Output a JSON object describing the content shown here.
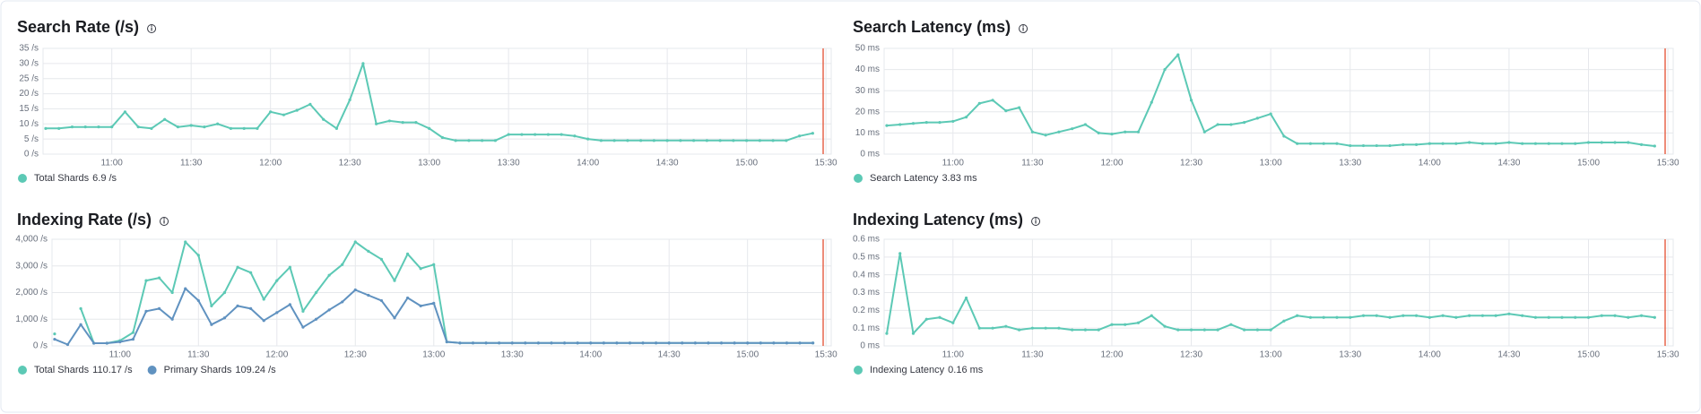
{
  "chart_data": [
    {
      "type": "line",
      "title": "Search Rate (/s)",
      "x": [
        "10:35",
        "10:40",
        "10:45",
        "10:50",
        "10:55",
        "11:00",
        "11:05",
        "11:10",
        "11:15",
        "11:20",
        "11:25",
        "11:30",
        "11:35",
        "11:40",
        "11:45",
        "11:50",
        "11:55",
        "12:00",
        "12:05",
        "12:10",
        "12:15",
        "12:20",
        "12:25",
        "12:30",
        "12:35",
        "12:40",
        "12:45",
        "12:50",
        "12:55",
        "13:00",
        "13:05",
        "13:10",
        "13:15",
        "13:20",
        "13:25",
        "13:30",
        "13:35",
        "13:40",
        "13:45",
        "13:50",
        "13:55",
        "14:00",
        "14:05",
        "14:10",
        "14:15",
        "14:20",
        "14:25",
        "14:30",
        "14:35",
        "14:40",
        "14:45",
        "14:50",
        "14:55",
        "15:00",
        "15:05",
        "15:10",
        "15:15",
        "15:20",
        "15:25"
      ],
      "xlim": [
        "10:34",
        "15:32"
      ],
      "xticks": [
        "11:00",
        "11:30",
        "12:00",
        "12:30",
        "13:00",
        "13:30",
        "14:00",
        "14:30",
        "15:00",
        "15:30"
      ],
      "ylim": [
        0,
        35
      ],
      "yticks": [
        {
          "value": 0,
          "label": "0 /s"
        },
        {
          "value": 5,
          "label": "5 /s"
        },
        {
          "value": 10,
          "label": "10 /s"
        },
        {
          "value": 15,
          "label": "15 /s"
        },
        {
          "value": 20,
          "label": "20 /s"
        },
        {
          "value": 25,
          "label": "25 /s"
        },
        {
          "value": 30,
          "label": "30 /s"
        },
        {
          "value": 35,
          "label": "35 /s"
        }
      ],
      "grid": true,
      "series": [
        {
          "name": "Total Shards",
          "legend_label": "6.9 /s",
          "color": "#5cc9b5",
          "values": [
            8.5,
            8.5,
            9,
            9,
            9,
            9,
            14,
            9,
            8.5,
            11.5,
            9,
            9.5,
            9,
            10,
            8.5,
            8.5,
            8.5,
            14,
            13,
            14.5,
            16.5,
            11.5,
            8.5,
            18,
            30,
            10,
            11,
            10.5,
            10.5,
            8.5,
            5.5,
            4.5,
            4.5,
            4.5,
            4.5,
            6.5,
            6.5,
            6.5,
            6.5,
            6.5,
            6,
            5,
            4.5,
            4.5,
            4.5,
            4.5,
            4.5,
            4.5,
            4.5,
            4.5,
            4.5,
            4.5,
            4.5,
            4.5,
            4.5,
            4.5,
            4.5,
            6,
            6.9
          ]
        }
      ]
    },
    {
      "type": "line",
      "title": "Search Latency (ms)",
      "x": [
        "10:35",
        "10:40",
        "10:45",
        "10:50",
        "10:55",
        "11:00",
        "11:05",
        "11:10",
        "11:15",
        "11:20",
        "11:25",
        "11:30",
        "11:35",
        "11:40",
        "11:45",
        "11:50",
        "11:55",
        "12:00",
        "12:05",
        "12:10",
        "12:15",
        "12:20",
        "12:25",
        "12:30",
        "12:35",
        "12:40",
        "12:45",
        "12:50",
        "12:55",
        "13:00",
        "13:05",
        "13:10",
        "13:15",
        "13:20",
        "13:25",
        "13:30",
        "13:35",
        "13:40",
        "13:45",
        "13:50",
        "13:55",
        "14:00",
        "14:05",
        "14:10",
        "14:15",
        "14:20",
        "14:25",
        "14:30",
        "14:35",
        "14:40",
        "14:45",
        "14:50",
        "14:55",
        "15:00",
        "15:05",
        "15:10",
        "15:15",
        "15:20",
        "15:25"
      ],
      "xlim": [
        "10:34",
        "15:32"
      ],
      "xticks": [
        "11:00",
        "11:30",
        "12:00",
        "12:30",
        "13:00",
        "13:30",
        "14:00",
        "14:30",
        "15:00",
        "15:30"
      ],
      "ylim": [
        0,
        50
      ],
      "yticks": [
        {
          "value": 0,
          "label": "0 ms"
        },
        {
          "value": 10,
          "label": "10 ms"
        },
        {
          "value": 20,
          "label": "20 ms"
        },
        {
          "value": 30,
          "label": "30 ms"
        },
        {
          "value": 40,
          "label": "40 ms"
        },
        {
          "value": 50,
          "label": "50 ms"
        }
      ],
      "grid": true,
      "series": [
        {
          "name": "Search Latency",
          "legend_label": "3.83 ms",
          "color": "#5cc9b5",
          "values": [
            13.5,
            14,
            14.5,
            15,
            15,
            15.5,
            17.5,
            24,
            25.5,
            20.5,
            22,
            10.5,
            9,
            10.5,
            12,
            14,
            10,
            9.5,
            10.5,
            10.5,
            24.5,
            40,
            47,
            25.5,
            10.5,
            14,
            14,
            15,
            17,
            19,
            8.5,
            5,
            5,
            5,
            5,
            4,
            4,
            4,
            4,
            4.5,
            4.5,
            5,
            5,
            5,
            5.5,
            5,
            5,
            5.5,
            5,
            5,
            5,
            5,
            5,
            5.5,
            5.5,
            5.5,
            5.5,
            4.5,
            3.83
          ]
        }
      ]
    },
    {
      "type": "line",
      "title": "Indexing Rate (/s)",
      "x": [
        "10:35",
        "10:40",
        "10:45",
        "10:50",
        "10:55",
        "11:00",
        "11:05",
        "11:10",
        "11:15",
        "11:20",
        "11:25",
        "11:30",
        "11:35",
        "11:40",
        "11:45",
        "11:50",
        "11:55",
        "12:00",
        "12:05",
        "12:10",
        "12:15",
        "12:20",
        "12:25",
        "12:30",
        "12:35",
        "12:40",
        "12:45",
        "12:50",
        "12:55",
        "13:00",
        "13:05",
        "13:10",
        "13:15",
        "13:20",
        "13:25",
        "13:30",
        "13:35",
        "13:40",
        "13:45",
        "13:50",
        "13:55",
        "14:00",
        "14:05",
        "14:10",
        "14:15",
        "14:20",
        "14:25",
        "14:30",
        "14:35",
        "14:40",
        "14:45",
        "14:50",
        "14:55",
        "15:00",
        "15:05",
        "15:10",
        "15:15",
        "15:20",
        "15:25"
      ],
      "xlim": [
        "10:34",
        "15:32"
      ],
      "xticks": [
        "11:00",
        "11:30",
        "12:00",
        "12:30",
        "13:00",
        "13:30",
        "14:00",
        "14:30",
        "15:00",
        "15:30"
      ],
      "ylim": [
        0,
        4000
      ],
      "yticks": [
        {
          "value": 0,
          "label": "0 /s"
        },
        {
          "value": 1000,
          "label": "1,000 /s"
        },
        {
          "value": 2000,
          "label": "2,000 /s"
        },
        {
          "value": 3000,
          "label": "3,000 /s"
        },
        {
          "value": 4000,
          "label": "4,000 /s"
        }
      ],
      "grid": true,
      "series": [
        {
          "name": "Total Shards",
          "legend_label": "110.17 /s",
          "color": "#5cc9b5",
          "values": [
            450,
            null,
            1400,
            100,
            100,
            200,
            500,
            2450,
            2550,
            2000,
            3900,
            3400,
            1500,
            2000,
            2950,
            2750,
            1750,
            2450,
            2950,
            1300,
            2000,
            2650,
            3050,
            3900,
            3550,
            3250,
            2450,
            3450,
            2900,
            3050,
            150,
            110,
            110,
            110,
            110,
            110,
            110,
            110,
            110,
            110,
            110,
            110,
            110,
            110,
            110,
            110,
            110,
            110,
            110,
            110,
            110,
            110,
            110,
            110,
            110,
            110,
            110,
            110,
            110.17
          ]
        },
        {
          "name": "Primary Shards",
          "legend_label": "109.24 /s",
          "color": "#6092c0",
          "values": [
            250,
            50,
            800,
            100,
            100,
            150,
            250,
            1300,
            1400,
            1000,
            2150,
            1700,
            800,
            1050,
            1500,
            1400,
            950,
            1250,
            1550,
            700,
            1000,
            1350,
            1650,
            2100,
            1900,
            1700,
            1050,
            1800,
            1500,
            1600,
            150,
            110,
            110,
            110,
            110,
            110,
            110,
            110,
            110,
            110,
            110,
            110,
            110,
            110,
            110,
            110,
            110,
            110,
            110,
            110,
            110,
            110,
            110,
            110,
            110,
            110,
            110,
            110,
            109.24
          ]
        }
      ]
    },
    {
      "type": "line",
      "title": "Indexing Latency (ms)",
      "x": [
        "10:35",
        "10:40",
        "10:45",
        "10:50",
        "10:55",
        "11:00",
        "11:05",
        "11:10",
        "11:15",
        "11:20",
        "11:25",
        "11:30",
        "11:35",
        "11:40",
        "11:45",
        "11:50",
        "11:55",
        "12:00",
        "12:05",
        "12:10",
        "12:15",
        "12:20",
        "12:25",
        "12:30",
        "12:35",
        "12:40",
        "12:45",
        "12:50",
        "12:55",
        "13:00",
        "13:05",
        "13:10",
        "13:15",
        "13:20",
        "13:25",
        "13:30",
        "13:35",
        "13:40",
        "13:45",
        "13:50",
        "13:55",
        "14:00",
        "14:05",
        "14:10",
        "14:15",
        "14:20",
        "14:25",
        "14:30",
        "14:35",
        "14:40",
        "14:45",
        "14:50",
        "14:55",
        "15:00",
        "15:05",
        "15:10",
        "15:15",
        "15:20",
        "15:25"
      ],
      "xlim": [
        "10:34",
        "15:32"
      ],
      "xticks": [
        "11:00",
        "11:30",
        "12:00",
        "12:30",
        "13:00",
        "13:30",
        "14:00",
        "14:30",
        "15:00",
        "15:30"
      ],
      "ylim": [
        0,
        0.6
      ],
      "yticks": [
        {
          "value": 0,
          "label": "0 ms"
        },
        {
          "value": 0.1,
          "label": "0.1 ms"
        },
        {
          "value": 0.2,
          "label": "0.2 ms"
        },
        {
          "value": 0.3,
          "label": "0.3 ms"
        },
        {
          "value": 0.4,
          "label": "0.4 ms"
        },
        {
          "value": 0.5,
          "label": "0.5 ms"
        },
        {
          "value": 0.6,
          "label": "0.6 ms"
        }
      ],
      "grid": true,
      "series": [
        {
          "name": "Indexing Latency",
          "legend_label": "0.16 ms",
          "color": "#5cc9b5",
          "values": [
            0.07,
            0.52,
            0.07,
            0.15,
            0.16,
            0.13,
            0.27,
            0.1,
            0.1,
            0.11,
            0.09,
            0.1,
            0.1,
            0.1,
            0.09,
            0.09,
            0.09,
            0.12,
            0.12,
            0.13,
            0.17,
            0.11,
            0.09,
            0.09,
            0.09,
            0.09,
            0.12,
            0.09,
            0.09,
            0.09,
            0.14,
            0.17,
            0.16,
            0.16,
            0.16,
            0.16,
            0.17,
            0.17,
            0.16,
            0.17,
            0.17,
            0.16,
            0.17,
            0.16,
            0.17,
            0.17,
            0.17,
            0.18,
            0.17,
            0.16,
            0.16,
            0.16,
            0.16,
            0.16,
            0.17,
            0.17,
            0.16,
            0.17,
            0.16
          ]
        }
      ]
    }
  ]
}
